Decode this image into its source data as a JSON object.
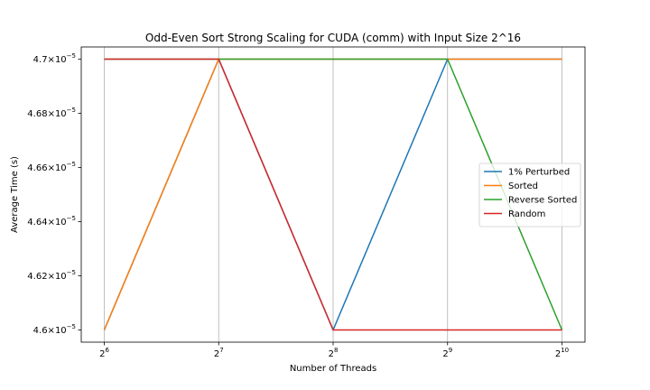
{
  "chart_data": {
    "type": "line",
    "title": "Odd-Even Sort Strong Scaling for CUDA (comm) with Input Size 2^16",
    "xlabel": "Number of Threads",
    "ylabel": "Average Time (s)",
    "x_scale": "log2",
    "x": [
      64,
      128,
      256,
      512,
      1024
    ],
    "x_tick_labels": [
      {
        "base": "2",
        "exp": "6"
      },
      {
        "base": "2",
        "exp": "7"
      },
      {
        "base": "2",
        "exp": "8"
      },
      {
        "base": "2",
        "exp": "9"
      },
      {
        "base": "2",
        "exp": "10"
      }
    ],
    "ylim": [
      4.5955e-05,
      4.7045e-05
    ],
    "y_ticks": [
      4.6e-05,
      4.62e-05,
      4.64e-05,
      4.66e-05,
      4.68e-05,
      4.7e-05
    ],
    "y_tick_labels": [
      {
        "mantissa": "4.6",
        "exp": "−5"
      },
      {
        "mantissa": "4.62",
        "exp": "−5"
      },
      {
        "mantissa": "4.64",
        "exp": "−5"
      },
      {
        "mantissa": "4.66",
        "exp": "−5"
      },
      {
        "mantissa": "4.68",
        "exp": "−5"
      },
      {
        "mantissa": "4.7",
        "exp": "−5"
      }
    ],
    "tick_mult": "×10",
    "grid": "x-only",
    "legend_position": "center-right",
    "series": [
      {
        "name": "1% Perturbed",
        "color": "#1f77b4",
        "values": [
          4.6e-05,
          4.7e-05,
          4.6e-05,
          4.7e-05,
          4.7e-05
        ]
      },
      {
        "name": "Sorted",
        "color": "#ff7f0e",
        "values": [
          4.6e-05,
          4.7e-05,
          4.7e-05,
          4.7e-05,
          4.7e-05
        ]
      },
      {
        "name": "Reverse Sorted",
        "color": "#2ca02c",
        "values": [
          4.7e-05,
          4.7e-05,
          4.7e-05,
          4.7e-05,
          4.6e-05
        ]
      },
      {
        "name": "Random",
        "color": "#d62728",
        "values": [
          4.7e-05,
          4.7e-05,
          4.6e-05,
          4.6e-05,
          4.6e-05
        ]
      }
    ]
  }
}
